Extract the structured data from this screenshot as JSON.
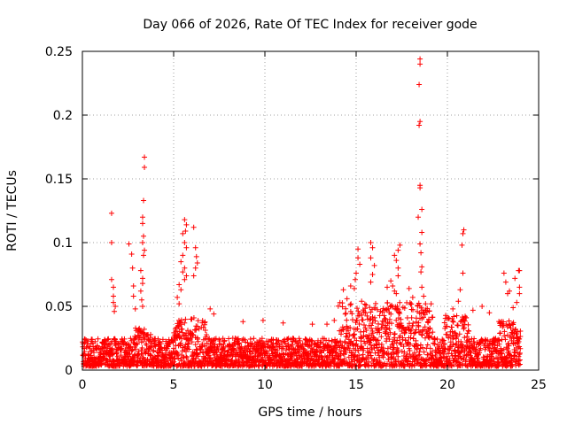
{
  "chart_data": {
    "type": "scatter",
    "title": "Day 066 of 2026, Rate Of TEC Index for receiver gode",
    "xlabel": "GPS time / hours",
    "ylabel": "ROTI / TECUs",
    "xlim": [
      0,
      25
    ],
    "ylim": [
      0,
      0.25
    ],
    "x_ticks": [
      0,
      5,
      10,
      15,
      20,
      25
    ],
    "x_tick_labels": [
      "0",
      "5",
      "10",
      "15",
      "20",
      "25"
    ],
    "y_ticks": [
      0,
      0.05,
      0.1,
      0.15,
      0.2,
      0.25
    ],
    "y_tick_labels": [
      "0",
      "0.05",
      "0.1",
      "0.15",
      "0.2",
      "0.25"
    ],
    "grid": true,
    "marker": "+",
    "series_color": "#ff0000",
    "series": [
      {
        "name": "ROTI",
        "points": [
          [
            1.6,
            0.123
          ],
          [
            1.6,
            0.1
          ],
          [
            1.6,
            0.071
          ],
          [
            1.7,
            0.065
          ],
          [
            1.7,
            0.058
          ],
          [
            1.7,
            0.053
          ],
          [
            1.8,
            0.05
          ],
          [
            1.75,
            0.046
          ],
          [
            2.55,
            0.099
          ],
          [
            2.7,
            0.091
          ],
          [
            2.75,
            0.08
          ],
          [
            2.8,
            0.066
          ],
          [
            2.8,
            0.058
          ],
          [
            2.9,
            0.048
          ],
          [
            3.4,
            0.167
          ],
          [
            3.4,
            0.159
          ],
          [
            3.35,
            0.133
          ],
          [
            3.3,
            0.12
          ],
          [
            3.3,
            0.115
          ],
          [
            3.35,
            0.105
          ],
          [
            3.3,
            0.1
          ],
          [
            3.4,
            0.094
          ],
          [
            3.35,
            0.09
          ],
          [
            3.2,
            0.078
          ],
          [
            3.3,
            0.072
          ],
          [
            3.3,
            0.068
          ],
          [
            3.2,
            0.062
          ],
          [
            3.25,
            0.055
          ],
          [
            3.3,
            0.05
          ],
          [
            5.5,
            0.107
          ],
          [
            5.6,
            0.118
          ],
          [
            5.7,
            0.114
          ],
          [
            5.65,
            0.109
          ],
          [
            5.6,
            0.1
          ],
          [
            5.7,
            0.096
          ],
          [
            5.5,
            0.09
          ],
          [
            5.4,
            0.085
          ],
          [
            5.6,
            0.08
          ],
          [
            5.5,
            0.077
          ],
          [
            5.7,
            0.074
          ],
          [
            5.6,
            0.071
          ],
          [
            5.3,
            0.067
          ],
          [
            5.4,
            0.063
          ],
          [
            5.2,
            0.057
          ],
          [
            5.3,
            0.052
          ],
          [
            6.1,
            0.112
          ],
          [
            6.2,
            0.096
          ],
          [
            6.25,
            0.089
          ],
          [
            6.3,
            0.084
          ],
          [
            6.2,
            0.08
          ],
          [
            6.1,
            0.074
          ],
          [
            7.0,
            0.048
          ],
          [
            7.2,
            0.044
          ],
          [
            8.8,
            0.038
          ],
          [
            9.9,
            0.039
          ],
          [
            11.0,
            0.037
          ],
          [
            12.6,
            0.036
          ],
          [
            13.4,
            0.036
          ],
          [
            13.8,
            0.039
          ],
          [
            14.3,
            0.063
          ],
          [
            14.5,
            0.056
          ],
          [
            14.7,
            0.066
          ],
          [
            14.9,
            0.064
          ],
          [
            14.95,
            0.071
          ],
          [
            15.1,
            0.088
          ],
          [
            15.1,
            0.095
          ],
          [
            15.2,
            0.083
          ],
          [
            15.0,
            0.076
          ],
          [
            15.3,
            0.054
          ],
          [
            15.8,
            0.1
          ],
          [
            15.9,
            0.096
          ],
          [
            15.8,
            0.088
          ],
          [
            16.0,
            0.082
          ],
          [
            15.9,
            0.075
          ],
          [
            15.8,
            0.069
          ],
          [
            16.7,
            0.065
          ],
          [
            16.9,
            0.07
          ],
          [
            17.1,
            0.09
          ],
          [
            17.3,
            0.094
          ],
          [
            17.2,
            0.086
          ],
          [
            17.3,
            0.08
          ],
          [
            17.4,
            0.098
          ],
          [
            17.3,
            0.074
          ],
          [
            17.0,
            0.066
          ],
          [
            17.1,
            0.062
          ],
          [
            17.2,
            0.06
          ],
          [
            17.9,
            0.064
          ],
          [
            18.1,
            0.057
          ],
          [
            18.5,
            0.244
          ],
          [
            18.5,
            0.24
          ],
          [
            18.45,
            0.224
          ],
          [
            18.5,
            0.195
          ],
          [
            18.45,
            0.192
          ],
          [
            18.5,
            0.145
          ],
          [
            18.5,
            0.143
          ],
          [
            18.6,
            0.126
          ],
          [
            18.4,
            0.12
          ],
          [
            18.6,
            0.108
          ],
          [
            18.5,
            0.099
          ],
          [
            18.55,
            0.092
          ],
          [
            18.6,
            0.081
          ],
          [
            18.55,
            0.077
          ],
          [
            18.6,
            0.065
          ],
          [
            18.7,
            0.058
          ],
          [
            18.8,
            0.052
          ],
          [
            20.9,
            0.11
          ],
          [
            20.85,
            0.107
          ],
          [
            20.8,
            0.098
          ],
          [
            20.85,
            0.076
          ],
          [
            20.7,
            0.063
          ],
          [
            20.6,
            0.054
          ],
          [
            20.3,
            0.048
          ],
          [
            21.4,
            0.047
          ],
          [
            21.9,
            0.05
          ],
          [
            22.3,
            0.045
          ],
          [
            23.1,
            0.076
          ],
          [
            23.2,
            0.069
          ],
          [
            23.3,
            0.06
          ],
          [
            23.4,
            0.062
          ],
          [
            23.7,
            0.072
          ],
          [
            23.9,
            0.078
          ],
          [
            23.95,
            0.078
          ],
          [
            23.95,
            0.065
          ],
          [
            23.95,
            0.06
          ],
          [
            23.8,
            0.053
          ],
          [
            23.6,
            0.049
          ]
        ]
      }
    ]
  }
}
